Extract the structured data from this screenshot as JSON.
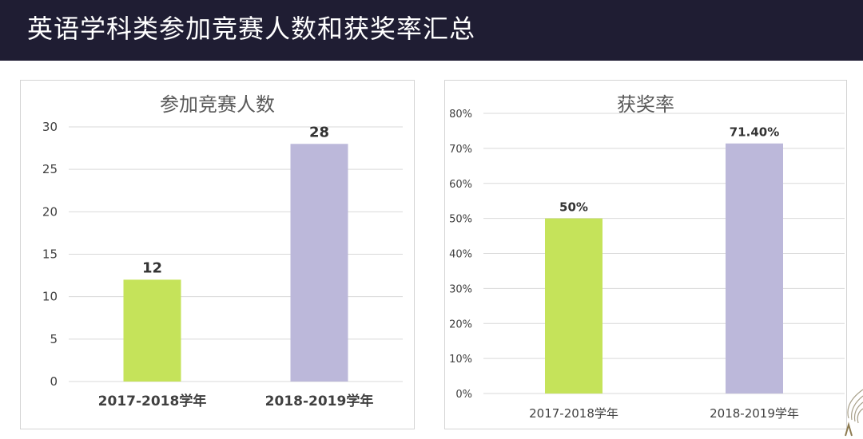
{
  "slide": {
    "title": "英语学科类参加竞赛人数和获奖率汇总"
  },
  "colors": {
    "header_bg": "#1f1d33",
    "bar_2017": "#c5e35a",
    "bar_2018": "#bcb8da",
    "grid": "#d9d9d9",
    "axis_text": "#404040"
  },
  "chart_data": [
    {
      "type": "bar",
      "title": "参加竞赛人数",
      "categories": [
        "2017-2018学年",
        "2018-2019学年"
      ],
      "values": [
        12,
        28
      ],
      "value_labels": [
        "12",
        "28"
      ],
      "bar_colors": [
        "#c5e35a",
        "#bcb8da"
      ],
      "ylim": [
        0,
        30
      ],
      "yticks": [
        0,
        5,
        10,
        15,
        20,
        25,
        30
      ],
      "ytick_labels": [
        "0",
        "5",
        "10",
        "15",
        "20",
        "25",
        "30"
      ],
      "grid": true,
      "legend": "none",
      "xlabel": "",
      "ylabel": ""
    },
    {
      "type": "bar",
      "title": "获奖率",
      "categories": [
        "2017-2018学年",
        "2018-2019学年"
      ],
      "values": [
        50,
        71.4
      ],
      "value_labels": [
        "50%",
        "71.40%"
      ],
      "bar_colors": [
        "#c5e35a",
        "#bcb8da"
      ],
      "ylim": [
        0,
        80
      ],
      "yticks": [
        0,
        10,
        20,
        30,
        40,
        50,
        60,
        70,
        80
      ],
      "ytick_labels": [
        "0%",
        "10%",
        "20%",
        "30%",
        "40%",
        "50%",
        "60%",
        "70%",
        "80%"
      ],
      "grid": true,
      "legend": "none",
      "xlabel": "",
      "ylabel": ""
    }
  ]
}
